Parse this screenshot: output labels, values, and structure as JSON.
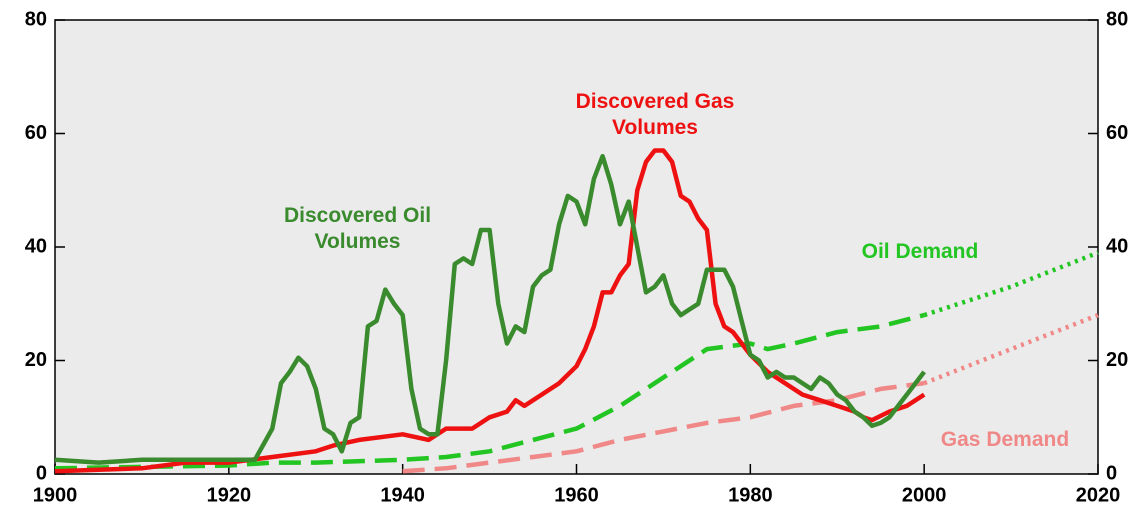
{
  "chart_data": {
    "type": "line",
    "xlim": [
      1900,
      2020
    ],
    "xticks": [
      1900,
      1920,
      1940,
      1960,
      1980,
      2000,
      2020
    ],
    "ylim": [
      0,
      80
    ],
    "yticks": [
      0,
      20,
      40,
      60,
      80
    ],
    "y2lim": [
      0,
      80
    ],
    "y2ticks": [
      0,
      20,
      40,
      60,
      80
    ],
    "background": "#ebebeb",
    "series": [
      {
        "name": "Discovered Oil Volumes",
        "color": "#3a8a2e",
        "style": "solid",
        "x": [
          1900,
          1905,
          1910,
          1915,
          1920,
          1923,
          1925,
          1926,
          1927,
          1928,
          1929,
          1930,
          1931,
          1932,
          1933,
          1934,
          1935,
          1936,
          1937,
          1938,
          1939,
          1940,
          1941,
          1942,
          1943,
          1944,
          1945,
          1946,
          1947,
          1948,
          1949,
          1950,
          1951,
          1952,
          1953,
          1954,
          1955,
          1956,
          1957,
          1958,
          1959,
          1960,
          1961,
          1962,
          1963,
          1964,
          1965,
          1966,
          1967,
          1968,
          1969,
          1970,
          1971,
          1972,
          1973,
          1974,
          1975,
          1976,
          1977,
          1978,
          1979,
          1980,
          1981,
          1982,
          1983,
          1984,
          1985,
          1986,
          1987,
          1988,
          1989,
          1990,
          1991,
          1992,
          1993,
          1994,
          1995,
          1996,
          1997,
          1998,
          1999,
          2000
        ],
        "values": [
          2.5,
          2,
          2.5,
          2.5,
          2.5,
          2.5,
          8,
          16,
          18,
          20.5,
          19,
          15,
          8,
          7,
          4,
          9,
          10,
          26,
          27,
          32.5,
          30,
          28,
          15,
          8,
          7,
          7,
          20,
          37,
          38,
          37,
          43,
          43,
          30,
          23,
          26,
          25,
          33,
          35,
          36,
          44,
          49,
          48,
          44,
          52,
          56,
          51,
          44,
          48,
          40,
          32,
          33,
          35,
          30,
          28,
          29,
          30,
          36,
          36,
          36,
          33,
          27,
          21,
          20,
          17,
          18,
          17,
          17,
          16,
          15,
          17,
          16,
          14,
          13,
          11,
          10,
          8.5,
          9,
          10,
          12,
          14,
          16,
          18
        ]
      },
      {
        "name": "Discovered Gas Volumes",
        "color": "#ee1111",
        "style": "solid",
        "x": [
          1900,
          1910,
          1915,
          1920,
          1925,
          1930,
          1932,
          1935,
          1940,
          1943,
          1945,
          1948,
          1950,
          1952,
          1953,
          1954,
          1956,
          1958,
          1960,
          1961,
          1962,
          1963,
          1964,
          1965,
          1966,
          1967,
          1968,
          1969,
          1970,
          1971,
          1972,
          1973,
          1974,
          1975,
          1976,
          1977,
          1978,
          1980,
          1982,
          1984,
          1986,
          1988,
          1990,
          1992,
          1993,
          1994,
          1996,
          1998,
          2000
        ],
        "values": [
          0.5,
          1,
          2,
          2,
          3,
          4,
          5,
          6,
          7,
          6,
          8,
          8,
          10,
          11,
          13,
          12,
          14,
          16,
          19,
          22,
          26,
          32,
          32,
          35,
          37,
          50,
          55,
          57,
          57,
          55,
          49,
          48,
          45,
          43,
          30,
          26,
          25,
          21,
          18,
          16,
          14,
          13,
          12,
          11,
          10,
          9.5,
          11,
          12,
          14
        ]
      },
      {
        "name": "Oil Demand",
        "color": "#22c522",
        "style": "dashed",
        "x": [
          1900,
          1920,
          1925,
          1930,
          1940,
          1945,
          1950,
          1955,
          1960,
          1965,
          1970,
          1975,
          1980,
          1982,
          1985,
          1990,
          1995,
          2000
        ],
        "values": [
          1,
          1.5,
          2,
          2,
          2.5,
          3,
          4,
          6,
          8,
          12,
          17,
          22,
          23,
          22,
          23,
          25,
          26,
          28
        ],
        "projection": {
          "x": [
            2000,
            2010,
            2020
          ],
          "values": [
            28,
            33,
            39
          ]
        }
      },
      {
        "name": "Gas Demand",
        "color": "#f08888",
        "style": "dashed",
        "x": [
          1940,
          1945,
          1950,
          1955,
          1960,
          1965,
          1970,
          1975,
          1980,
          1985,
          1990,
          1995,
          2000
        ],
        "values": [
          0.5,
          1,
          2,
          3,
          4,
          6,
          7.5,
          9,
          10,
          12,
          13,
          15,
          16
        ],
        "projection": {
          "x": [
            2000,
            2010,
            2020
          ],
          "values": [
            16,
            22,
            28
          ]
        }
      }
    ]
  }
}
